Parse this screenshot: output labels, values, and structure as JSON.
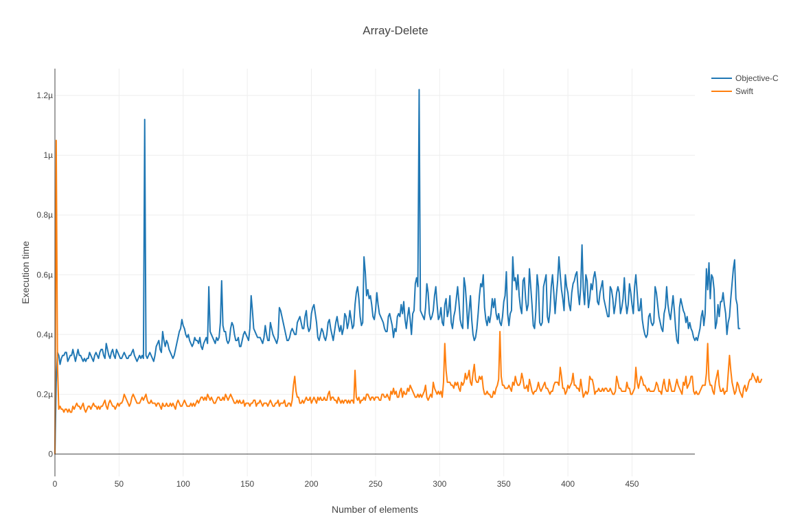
{
  "chart_data": {
    "type": "line",
    "title": "Array-Delete",
    "xlabel": "Number of elements",
    "ylabel": "Execution time",
    "xlim": [
      0,
      499
    ],
    "ylim": [
      -7.5e-08,
      1.29e-06
    ],
    "grid": true,
    "legend_position": "top-right",
    "x_ticks": [
      0,
      50,
      100,
      150,
      200,
      250,
      300,
      350,
      400,
      450
    ],
    "x_tick_labels": [
      "0",
      "50",
      "100",
      "150",
      "200",
      "250",
      "300",
      "350",
      "400",
      "450"
    ],
    "y_ticks": [
      0,
      2e-07,
      4e-07,
      6e-07,
      8e-07,
      1e-06,
      1.2e-06
    ],
    "y_tick_labels": [
      "0",
      "0.2µ",
      "0.4µ",
      "0.6µ",
      "0.8µ",
      "1µ",
      "1.2µ"
    ],
    "x_step": 1,
    "scale": 1e-09,
    "series": [
      {
        "name": "Objective-C",
        "color": "#1f77b4",
        "values_ns": [
          0,
          240,
          340,
          330,
          300,
          320,
          330,
          330,
          340,
          340,
          310,
          320,
          330,
          330,
          350,
          330,
          310,
          330,
          350,
          330,
          330,
          320,
          310,
          320,
          310,
          320,
          320,
          340,
          330,
          320,
          310,
          330,
          340,
          330,
          320,
          340,
          350,
          350,
          330,
          320,
          370,
          350,
          330,
          320,
          340,
          350,
          330,
          320,
          350,
          340,
          330,
          320,
          320,
          330,
          340,
          330,
          320,
          320,
          330,
          330,
          340,
          350,
          330,
          320,
          310,
          320,
          330,
          320,
          330,
          320,
          1120,
          330,
          320,
          330,
          340,
          330,
          320,
          310,
          330,
          360,
          370,
          380,
          350,
          340,
          410,
          380,
          360,
          380,
          370,
          350,
          340,
          330,
          320,
          330,
          350,
          370,
          390,
          410,
          420,
          450,
          430,
          420,
          400,
          390,
          400,
          380,
          370,
          360,
          370,
          390,
          380,
          380,
          370,
          390,
          360,
          350,
          370,
          380,
          390,
          370,
          560,
          410,
          400,
          390,
          380,
          370,
          390,
          380,
          390,
          440,
          580,
          430,
          410,
          410,
          380,
          370,
          380,
          420,
          440,
          430,
          400,
          380,
          380,
          390,
          360,
          360,
          380,
          400,
          410,
          400,
          390,
          380,
          420,
          530,
          480,
          420,
          410,
          400,
          390,
          390,
          390,
          380,
          370,
          390,
          430,
          400,
          380,
          380,
          440,
          420,
          400,
          390,
          380,
          370,
          390,
          490,
          480,
          460,
          440,
          420,
          400,
          380,
          380,
          390,
          410,
          420,
          410,
          400,
          400,
          440,
          450,
          460,
          440,
          420,
          420,
          460,
          480,
          430,
          410,
          420,
          470,
          490,
          500,
          470,
          440,
          390,
          380,
          400,
          420,
          410,
          390,
          380,
          400,
          440,
          450,
          420,
          400,
          380,
          410,
          440,
          460,
          430,
          410,
          430,
          400,
          420,
          470,
          460,
          420,
          440,
          480,
          450,
          420,
          430,
          500,
          540,
          560,
          520,
          460,
          430,
          440,
          660,
          610,
          530,
          550,
          520,
          530,
          500,
          460,
          450,
          480,
          540,
          500,
          470,
          460,
          450,
          440,
          420,
          410,
          410,
          460,
          470,
          450,
          430,
          390,
          420,
          410,
          460,
          470,
          460,
          500,
          470,
          510,
          450,
          420,
          460,
          490,
          450,
          400,
          470,
          480,
          570,
          590,
          560,
          1220,
          480,
          470,
          460,
          450,
          490,
          570,
          540,
          470,
          450,
          460,
          480,
          530,
          560,
          500,
          450,
          460,
          490,
          440,
          430,
          500,
          520,
          460,
          480,
          530,
          440,
          420,
          460,
          480,
          520,
          560,
          510,
          450,
          430,
          420,
          590,
          560,
          500,
          420,
          480,
          530,
          450,
          400,
          380,
          390,
          420,
          470,
          530,
          570,
          560,
          600,
          490,
          450,
          430,
          460,
          440,
          470,
          520,
          490,
          520,
          470,
          450,
          470,
          440,
          430,
          460,
          510,
          530,
          610,
          470,
          430,
          470,
          480,
          660,
          580,
          590,
          550,
          600,
          530,
          490,
          470,
          580,
          590,
          520,
          480,
          500,
          620,
          560,
          500,
          430,
          420,
          480,
          600,
          560,
          440,
          430,
          440,
          560,
          580,
          600,
          460,
          440,
          480,
          560,
          600,
          540,
          470,
          530,
          580,
          660,
          600,
          550,
          520,
          480,
          600,
          560,
          540,
          500,
          480,
          540,
          570,
          580,
          600,
          610,
          540,
          500,
          560,
          700,
          550,
          500,
          600,
          580,
          490,
          520,
          570,
          550,
          590,
          610,
          580,
          510,
          500,
          540,
          560,
          580,
          520,
          500,
          480,
          460,
          460,
          560,
          550,
          520,
          470,
          500,
          540,
          560,
          540,
          470,
          490,
          520,
          590,
          510,
          470,
          500,
          570,
          540,
          500,
          470,
          560,
          600,
          540,
          480,
          480,
          520,
          450,
          420,
          400,
          390,
          400,
          460,
          470,
          440,
          430,
          440,
          560,
          540,
          500,
          460,
          440,
          420,
          410,
          470,
          490,
          560,
          500,
          470,
          450,
          490,
          530,
          480,
          420,
          380,
          370,
          490,
          520,
          500,
          480,
          470,
          440,
          460,
          420,
          440,
          420,
          410,
          390,
          380,
          390,
          380,
          400,
          420,
          460,
          480,
          430,
          470,
          620,
          550,
          640,
          520,
          600,
          590,
          550,
          420,
          440,
          500,
          460,
          510,
          510,
          540,
          500,
          470,
          400,
          440,
          460,
          520,
          570,
          620,
          650,
          520,
          500,
          420,
          420
        ],
        "note": "Objective-C series"
      },
      {
        "name": "Swift",
        "color": "#ff7f0e",
        "values_ns": [
          0,
          1050,
          300,
          150,
          160,
          150,
          150,
          140,
          150,
          150,
          140,
          150,
          140,
          140,
          160,
          150,
          160,
          170,
          160,
          160,
          150,
          160,
          170,
          150,
          140,
          150,
          160,
          160,
          150,
          160,
          170,
          160,
          160,
          150,
          160,
          150,
          160,
          160,
          170,
          180,
          160,
          150,
          170,
          180,
          170,
          160,
          160,
          150,
          160,
          170,
          160,
          170,
          170,
          180,
          200,
          190,
          180,
          170,
          160,
          170,
          190,
          200,
          190,
          180,
          170,
          170,
          170,
          180,
          190,
          180,
          190,
          200,
          180,
          170,
          170,
          180,
          170,
          170,
          170,
          160,
          170,
          170,
          160,
          150,
          170,
          160,
          160,
          170,
          160,
          160,
          170,
          160,
          170,
          160,
          150,
          170,
          180,
          170,
          160,
          160,
          170,
          180,
          170,
          160,
          160,
          160,
          170,
          160,
          170,
          160,
          170,
          180,
          170,
          180,
          190,
          190,
          180,
          190,
          180,
          200,
          190,
          180,
          190,
          180,
          170,
          170,
          180,
          190,
          190,
          180,
          180,
          190,
          180,
          200,
          190,
          180,
          190,
          200,
          190,
          180,
          170,
          170,
          180,
          170,
          180,
          170,
          170,
          180,
          160,
          170,
          170,
          170,
          160,
          170,
          170,
          180,
          180,
          160,
          170,
          170,
          180,
          170,
          160,
          170,
          170,
          170,
          160,
          170,
          180,
          170,
          160,
          160,
          170,
          170,
          180,
          160,
          170,
          170,
          170,
          180,
          160,
          160,
          170,
          170,
          160,
          180,
          230,
          260,
          210,
          190,
          190,
          170,
          170,
          180,
          170,
          180,
          190,
          180,
          180,
          190,
          170,
          180,
          190,
          180,
          170,
          190,
          180,
          190,
          180,
          180,
          190,
          180,
          180,
          200,
          210,
          180,
          190,
          190,
          180,
          180,
          170,
          190,
          180,
          170,
          180,
          170,
          180,
          180,
          170,
          180,
          170,
          180,
          180,
          170,
          280,
          190,
          180,
          190,
          170,
          180,
          180,
          190,
          180,
          200,
          200,
          190,
          180,
          190,
          190,
          180,
          190,
          190,
          190,
          180,
          180,
          200,
          200,
          190,
          190,
          200,
          190,
          180,
          210,
          200,
          220,
          200,
          210,
          190,
          190,
          210,
          220,
          190,
          210,
          200,
          200,
          220,
          210,
          230,
          220,
          210,
          200,
          190,
          190,
          200,
          190,
          200,
          190,
          200,
          210,
          230,
          190,
          180,
          190,
          200,
          190,
          240,
          220,
          210,
          200,
          210,
          200,
          210,
          190,
          240,
          370,
          280,
          240,
          240,
          240,
          230,
          230,
          220,
          240,
          230,
          240,
          220,
          210,
          240,
          230,
          240,
          270,
          250,
          260,
          280,
          240,
          230,
          270,
          300,
          250,
          240,
          240,
          260,
          250,
          260,
          220,
          200,
          200,
          210,
          200,
          200,
          190,
          190,
          210,
          200,
          220,
          230,
          250,
          410,
          260,
          230,
          230,
          220,
          220,
          220,
          230,
          220,
          210,
          240,
          230,
          260,
          240,
          230,
          230,
          240,
          270,
          250,
          220,
          220,
          230,
          210,
          250,
          230,
          210,
          200,
          210,
          210,
          220,
          240,
          220,
          210,
          220,
          230,
          240,
          220,
          220,
          210,
          200,
          210,
          210,
          230,
          240,
          240,
          240,
          230,
          290,
          260,
          220,
          220,
          200,
          210,
          230,
          220,
          230,
          240,
          270,
          230,
          230,
          220,
          220,
          210,
          250,
          220,
          190,
          200,
          210,
          200,
          210,
          260,
          250,
          250,
          230,
          200,
          210,
          210,
          220,
          210,
          210,
          220,
          210,
          220,
          220,
          210,
          210,
          220,
          210,
          200,
          200,
          210,
          260,
          240,
          220,
          220,
          210,
          210,
          210,
          210,
          240,
          220,
          220,
          200,
          200,
          210,
          220,
          290,
          240,
          220,
          240,
          260,
          250,
          230,
          230,
          220,
          210,
          220,
          210,
          210,
          210,
          210,
          220,
          240,
          230,
          210,
          210,
          200,
          230,
          250,
          220,
          210,
          210,
          250,
          230,
          210,
          210,
          210,
          230,
          250,
          230,
          220,
          210,
          200,
          240,
          230,
          260,
          220,
          230,
          240,
          260,
          260,
          210,
          200,
          210,
          200,
          200,
          210,
          220,
          230,
          230,
          230,
          270,
          370,
          250,
          230,
          230,
          210,
          200,
          240,
          260,
          280,
          230,
          210,
          210,
          220,
          200,
          210,
          210,
          270,
          330,
          280,
          240,
          220,
          200,
          210,
          240,
          230,
          210,
          200,
          190,
          220,
          230,
          210,
          220,
          240,
          250,
          250,
          270,
          260,
          250,
          240,
          260,
          240,
          240,
          250
        ]
      }
    ]
  }
}
